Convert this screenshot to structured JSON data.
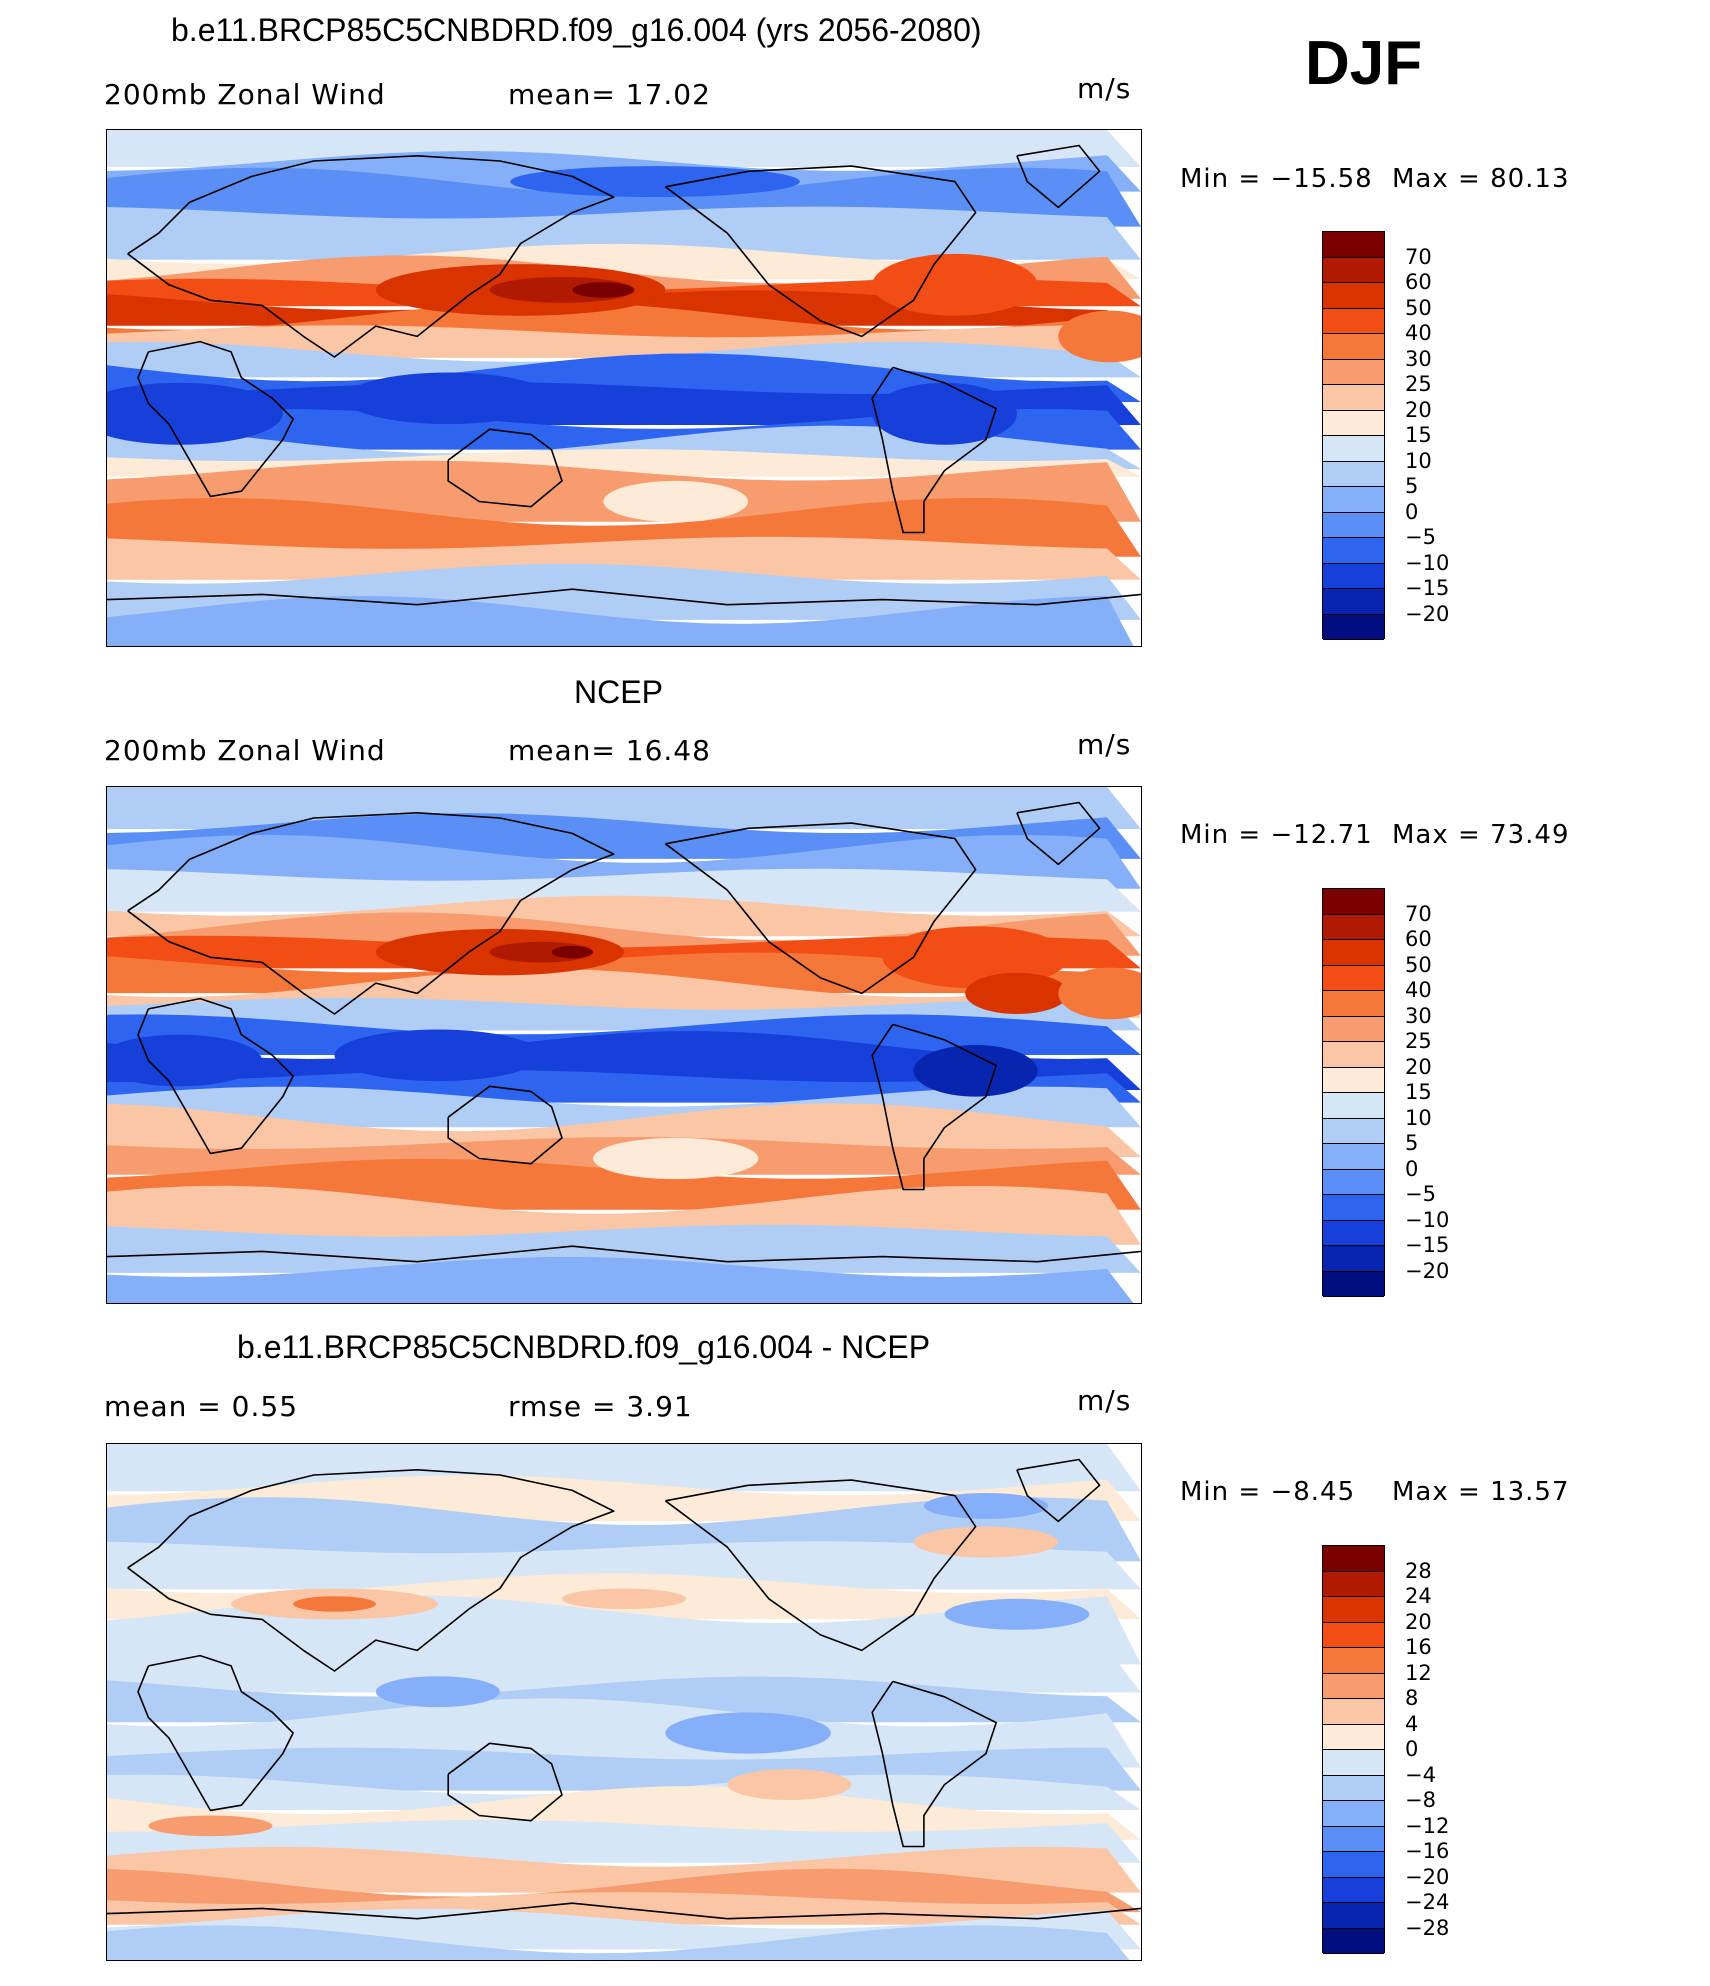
{
  "season": "DJF",
  "unit_label": "m/s",
  "chart_data": [
    {
      "type": "heatmap",
      "title": "b.e11.BRCP85C5CNBDRD.f09_g16.004 (yrs 2056-2080)",
      "subtitle_left": "200mb  Zonal  Wind",
      "stat1": "mean=   17.02",
      "units": "m/s",
      "min_label": "Min  =  −15.58",
      "max_label": "Max  =    80.13",
      "min": -15.58,
      "max": 80.13,
      "mean": 17.02,
      "colorbar_levels": [
        "70",
        "60",
        "50",
        "40",
        "30",
        "25",
        "20",
        "15",
        "10",
        "5",
        "0",
        "−5",
        "−10",
        "−15",
        "−20"
      ],
      "colorbar_colors": [
        "#7a0000",
        "#b01a00",
        "#d93300",
        "#f24d14",
        "#f5773a",
        "#f79c6e",
        "#fac6a6",
        "#fdebd8",
        "#d6e6f7",
        "#b0cdf5",
        "#86affa",
        "#5a8ff5",
        "#2e65f0",
        "#1640d9",
        "#0825b0",
        "#000e80"
      ]
    },
    {
      "type": "heatmap",
      "title": "NCEP",
      "subtitle_left": "200mb  Zonal  Wind",
      "stat1": "mean=   16.48",
      "units": "m/s",
      "min_label": "Min  =  −12.71",
      "max_label": "Max  =    73.49",
      "min": -12.71,
      "max": 73.49,
      "mean": 16.48,
      "colorbar_levels": [
        "70",
        "60",
        "50",
        "40",
        "30",
        "25",
        "20",
        "15",
        "10",
        "5",
        "0",
        "−5",
        "−10",
        "−15",
        "−20"
      ],
      "colorbar_colors": [
        "#7a0000",
        "#b01a00",
        "#d93300",
        "#f24d14",
        "#f5773a",
        "#f79c6e",
        "#fac6a6",
        "#fdebd8",
        "#d6e6f7",
        "#b0cdf5",
        "#86affa",
        "#5a8ff5",
        "#2e65f0",
        "#1640d9",
        "#0825b0",
        "#000e80"
      ]
    },
    {
      "type": "heatmap",
      "title": "b.e11.BRCP85C5CNBDRD.f09_g16.004 - NCEP",
      "subtitle_left": "mean  =     0.55",
      "stat1": "rmse  =     3.91",
      "units": "m/s",
      "min_label": "Min  =     −8.45",
      "max_label": "Max  =     13.57",
      "min": -8.45,
      "max": 13.57,
      "mean": 0.55,
      "rmse": 3.91,
      "colorbar_levels": [
        "28",
        "24",
        "20",
        "16",
        "12",
        "8",
        "4",
        "0",
        "−4",
        "−8",
        "−12",
        "−16",
        "−20",
        "−24",
        "−28"
      ],
      "colorbar_colors": [
        "#7a0000",
        "#b01a00",
        "#d93300",
        "#f24d14",
        "#f5773a",
        "#f79c6e",
        "#fac6a6",
        "#fdebd8",
        "#d6e6f7",
        "#b0cdf5",
        "#86affa",
        "#5a8ff5",
        "#2e65f0",
        "#1640d9",
        "#0825b0",
        "#000e80"
      ]
    }
  ]
}
